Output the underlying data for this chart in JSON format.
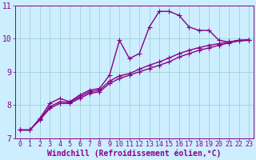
{
  "xlabel": "Windchill (Refroidissement éolien,°C)",
  "bg_color": "#cceeff",
  "line_color": "#880088",
  "grid_color": "#99cccc",
  "text_color": "#880088",
  "xlim": [
    -0.5,
    23.5
  ],
  "ylim": [
    7,
    11
  ],
  "yticks": [
    7,
    8,
    9,
    10,
    11
  ],
  "xticks": [
    0,
    1,
    2,
    3,
    4,
    5,
    6,
    7,
    8,
    9,
    10,
    11,
    12,
    13,
    14,
    15,
    16,
    17,
    18,
    19,
    20,
    21,
    22,
    23
  ],
  "series": [
    {
      "x": [
        0,
        1,
        2,
        3,
        4,
        5,
        6,
        7,
        8,
        9,
        10,
        11,
        12,
        13,
        14,
        15,
        16,
        17,
        18,
        19,
        20,
        21,
        22,
        23
      ],
      "y": [
        7.25,
        7.25,
        7.6,
        8.05,
        8.2,
        8.1,
        8.3,
        8.45,
        8.5,
        8.9,
        9.95,
        9.4,
        9.55,
        10.35,
        10.82,
        10.82,
        10.7,
        10.35,
        10.25,
        10.25,
        9.95,
        9.9,
        9.95,
        9.95
      ]
    },
    {
      "x": [
        0,
        1,
        2,
        3,
        4,
        5,
        6,
        7,
        8,
        9,
        10,
        11,
        12,
        13,
        14,
        15,
        16,
        17,
        18,
        19,
        20,
        21,
        22,
        23
      ],
      "y": [
        7.25,
        7.25,
        7.55,
        7.9,
        8.05,
        8.05,
        8.2,
        8.35,
        8.4,
        8.65,
        8.8,
        8.9,
        9.0,
        9.1,
        9.2,
        9.3,
        9.45,
        9.55,
        9.65,
        9.72,
        9.8,
        9.87,
        9.93,
        9.95
      ]
    },
    {
      "x": [
        0,
        1,
        2,
        3,
        4,
        5,
        6,
        7,
        8,
        9,
        10,
        11,
        12,
        13,
        14,
        15,
        16,
        17,
        18,
        19,
        20,
        21,
        22,
        23
      ],
      "y": [
        7.25,
        7.25,
        7.58,
        7.95,
        8.1,
        8.08,
        8.25,
        8.4,
        8.45,
        8.72,
        8.88,
        8.95,
        9.08,
        9.2,
        9.3,
        9.42,
        9.55,
        9.65,
        9.73,
        9.8,
        9.85,
        9.9,
        9.95,
        9.97
      ]
    }
  ],
  "marker": "+",
  "markersize": 5,
  "linewidth": 1.0,
  "font_size": 7,
  "tick_font_size": 6,
  "tick_font_size_y": 7
}
